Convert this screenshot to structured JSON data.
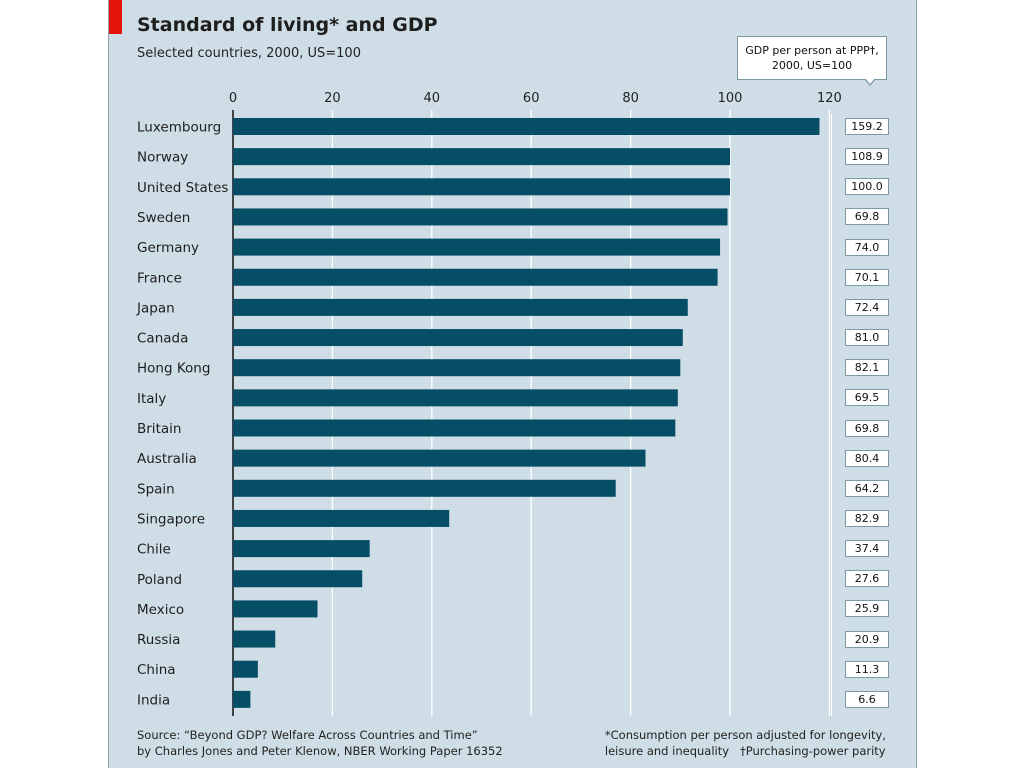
{
  "header": {
    "title": "Standard of living* and GDP",
    "subtitle": "Selected countries, 2000, US=100"
  },
  "callout": {
    "line1": "GDP per person at PPP†,",
    "line2": "2000, US=100"
  },
  "footer": {
    "source_line1": "Source: “Beyond GDP? Welfare Across Countries and Time”",
    "source_line2": "by Charles Jones and Peter Klenow, NBER Working Paper 16352",
    "note_line1": "*Consumption per person adjusted for longevity,",
    "note_line2": "leisure and inequality   †Purchasing-power parity"
  },
  "colors": {
    "background": "#cfdee6",
    "bar": "#064d66",
    "accent": "#e3120b",
    "gridline": "#ffffff"
  },
  "chart_data": {
    "type": "bar",
    "orientation": "horizontal",
    "title": "Standard of living* and GDP",
    "subtitle": "Selected countries, 2000, US=100",
    "xlim": [
      0,
      120
    ],
    "xticks": [
      0,
      20,
      40,
      60,
      80,
      100,
      120
    ],
    "grid": true,
    "categories": [
      "Luxembourg",
      "Norway",
      "United States",
      "Sweden",
      "Germany",
      "France",
      "Japan",
      "Canada",
      "Hong Kong",
      "Italy",
      "Britain",
      "Australia",
      "Spain",
      "Singapore",
      "Chile",
      "Poland",
      "Mexico",
      "Russia",
      "China",
      "India"
    ],
    "series": [
      {
        "values": [
          118,
          100,
          100,
          99.5,
          98,
          97.5,
          91.5,
          90.5,
          90,
          89.5,
          89,
          83,
          77,
          43.5,
          27.5,
          26,
          17,
          8.5,
          5,
          3.5
        ]
      }
    ],
    "gdp_per_person": [
      "159.2",
      "108.9",
      "100.0",
      "69.8",
      "74.0",
      "70.1",
      "72.4",
      "81.0",
      "82.1",
      "69.5",
      "69.8",
      "80.4",
      "64.2",
      "82.9",
      "37.4",
      "27.6",
      "25.9",
      "20.9",
      "11.3",
      "6.6"
    ]
  }
}
